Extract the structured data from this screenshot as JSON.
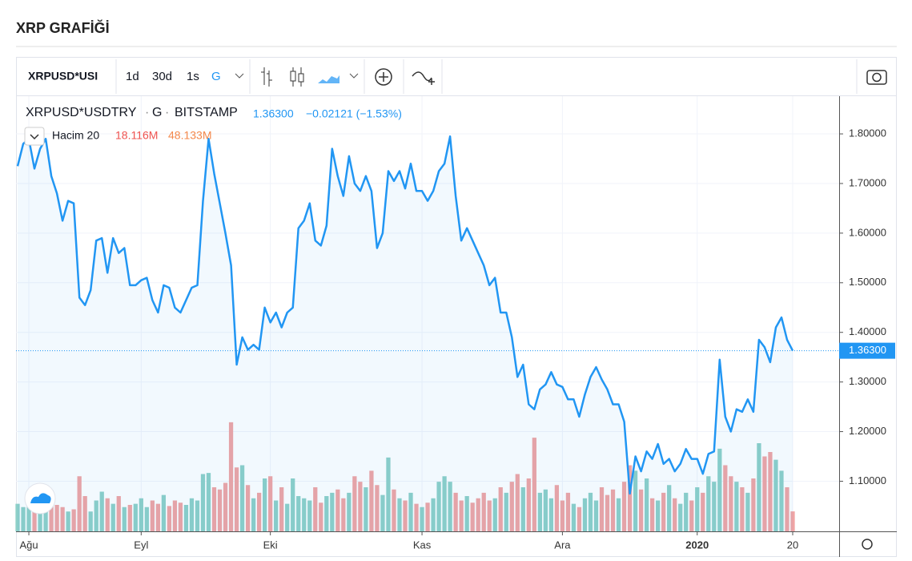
{
  "page_title": "XRP GRAFİĞİ",
  "toolbar": {
    "symbol": "XRPUSD*USI",
    "intervals": [
      "1d",
      "30d",
      "1s",
      "G"
    ]
  },
  "chart_data": {
    "type": "line",
    "symbol_parts": [
      "XRPUSD*USDTRY",
      "G",
      "BITSTAMP"
    ],
    "last_price": {
      "value": 1.363,
      "label": "1.36300"
    },
    "change": "−0.02121 (−1.53%)",
    "ylim": [
      0.999,
      1.876
    ],
    "yticks": [
      {
        "value": 1.1,
        "label": "1.10000"
      },
      {
        "value": 1.2,
        "label": "1.20000"
      },
      {
        "value": 1.3,
        "label": "1.30000"
      },
      {
        "value": 1.4,
        "label": "1.40000"
      },
      {
        "value": 1.5,
        "label": "1.50000"
      },
      {
        "value": 1.6,
        "label": "1.60000"
      },
      {
        "value": 1.7,
        "label": "1.70000"
      },
      {
        "value": 1.8,
        "label": "1.80000"
      }
    ],
    "grid": true,
    "categories": [
      null,
      null,
      "Ağu",
      null,
      null,
      null,
      null,
      null,
      null,
      null,
      null,
      null,
      null,
      null,
      null,
      null,
      null,
      null,
      null,
      null,
      null,
      null,
      "Eyl",
      null,
      null,
      null,
      null,
      null,
      null,
      null,
      null,
      null,
      null,
      null,
      null,
      null,
      null,
      null,
      null,
      null,
      null,
      null,
      null,
      null,
      null,
      "Eki",
      null,
      null,
      null,
      null,
      null,
      null,
      null,
      null,
      null,
      null,
      null,
      null,
      null,
      null,
      null,
      null,
      null,
      null,
      null,
      null,
      null,
      null,
      null,
      null,
      null,
      null,
      "Kas",
      null,
      null,
      null,
      null,
      null,
      null,
      null,
      null,
      null,
      null,
      null,
      null,
      null,
      null,
      null,
      null,
      null,
      null,
      null,
      null,
      null,
      null,
      null,
      null,
      "Ara",
      null,
      null,
      null,
      null,
      null,
      null,
      null,
      null,
      null,
      null,
      null,
      null,
      null,
      null,
      null,
      null,
      null,
      null,
      null,
      null,
      null,
      null,
      null,
      "2020",
      null,
      null,
      null,
      null,
      null,
      null,
      null,
      null,
      null,
      null,
      null,
      null,
      null,
      null,
      null,
      null,
      "20"
    ],
    "series": [
      {
        "name": "XRPUSD*USDTRY",
        "color": "#2196f3",
        "values": [
          1.735,
          1.78,
          1.79,
          1.73,
          1.77,
          1.79,
          1.715,
          1.68,
          1.625,
          1.665,
          1.66,
          1.47,
          1.455,
          1.485,
          1.585,
          1.59,
          1.52,
          1.59,
          1.56,
          1.57,
          1.495,
          1.495,
          1.505,
          1.51,
          1.465,
          1.44,
          1.495,
          1.49,
          1.45,
          1.44,
          1.465,
          1.49,
          1.495,
          1.665,
          1.79,
          1.72,
          1.66,
          1.6,
          1.535,
          1.335,
          1.39,
          1.365,
          1.375,
          1.365,
          1.45,
          1.42,
          1.44,
          1.41,
          1.44,
          1.45,
          1.61,
          1.625,
          1.66,
          1.585,
          1.575,
          1.615,
          1.77,
          1.715,
          1.675,
          1.755,
          1.7,
          1.685,
          1.715,
          1.685,
          1.57,
          1.6,
          1.725,
          1.705,
          1.725,
          1.69,
          1.74,
          1.685,
          1.685,
          1.665,
          1.685,
          1.725,
          1.74,
          1.795,
          1.675,
          1.585,
          1.61,
          1.585,
          1.56,
          1.535,
          1.495,
          1.51,
          1.44,
          1.44,
          1.39,
          1.31,
          1.335,
          1.255,
          1.245,
          1.285,
          1.295,
          1.32,
          1.295,
          1.29,
          1.265,
          1.265,
          1.23,
          1.275,
          1.31,
          1.33,
          1.305,
          1.285,
          1.255,
          1.255,
          1.22,
          1.075,
          1.15,
          1.12,
          1.16,
          1.145,
          1.175,
          1.135,
          1.145,
          1.12,
          1.135,
          1.165,
          1.145,
          1.145,
          1.115,
          1.155,
          1.16,
          1.345,
          1.23,
          1.2,
          1.245,
          1.24,
          1.265,
          1.24,
          1.385,
          1.37,
          1.34,
          1.41,
          1.43,
          1.385,
          1.363
        ]
      }
    ],
    "volume": {
      "name": "Hacim 20",
      "up_color": "#8ed0c8",
      "down_color": "#f1a4a4",
      "lim": [
        0,
        200
      ],
      "last": {
        "value": 18.116,
        "label": "18.116M"
      },
      "ma": {
        "value": 48.133,
        "label": "48.133M"
      },
      "values": [
        25,
        22,
        28,
        25,
        20,
        30,
        26,
        24,
        22,
        18,
        20,
        50,
        32,
        18,
        28,
        36,
        30,
        25,
        32,
        22,
        24,
        25,
        30,
        22,
        28,
        25,
        33,
        23,
        28,
        26,
        24,
        30,
        28,
        52,
        53,
        40,
        38,
        44,
        99,
        58,
        60,
        42,
        30,
        35,
        48,
        50,
        28,
        40,
        25,
        48,
        32,
        30,
        28,
        40,
        26,
        32,
        35,
        38,
        30,
        35,
        50,
        45,
        40,
        55,
        42,
        33,
        67,
        38,
        30,
        28,
        35,
        25,
        22,
        26,
        30,
        45,
        50,
        45,
        35,
        28,
        32,
        26,
        30,
        35,
        28,
        30,
        40,
        35,
        45,
        52,
        40,
        48,
        85,
        35,
        38,
        30,
        42,
        28,
        35,
        25,
        22,
        30,
        35,
        28,
        40,
        33,
        38,
        30,
        45,
        60,
        55,
        38,
        48,
        30,
        28,
        35,
        42,
        30,
        25,
        35,
        28,
        40,
        35,
        50,
        45,
        75,
        60,
        50,
        45,
        40,
        35,
        48,
        80,
        68,
        72,
        65,
        55,
        40,
        18.116
      ]
    }
  }
}
